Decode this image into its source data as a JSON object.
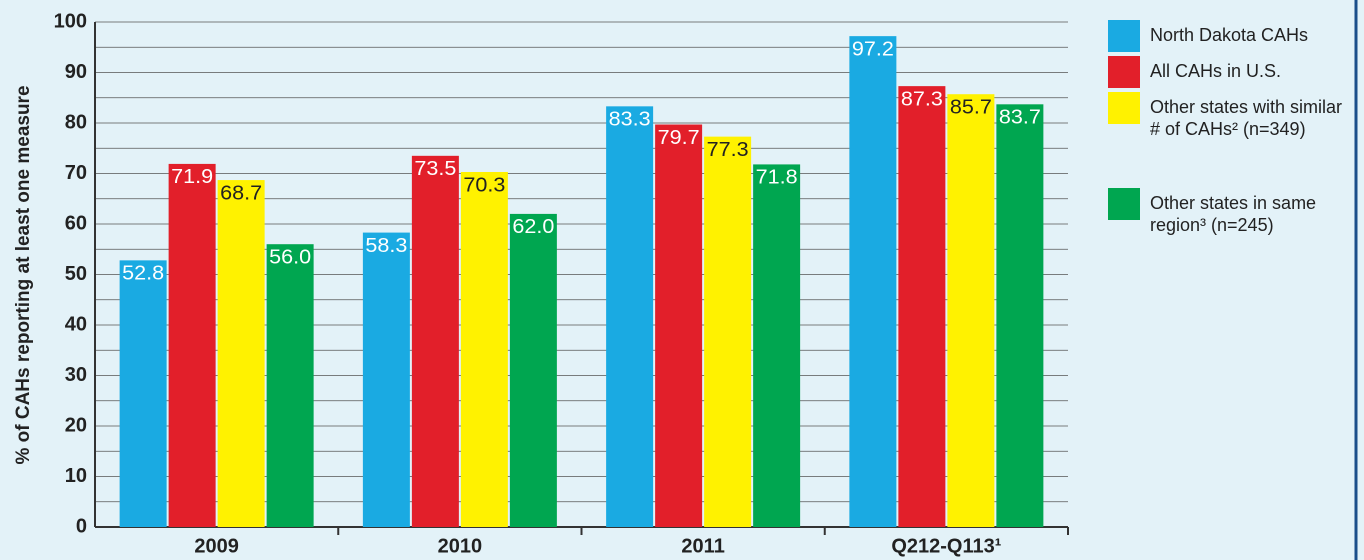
{
  "chart_data": {
    "type": "bar",
    "ylabel": "% of CAHs reporting at least one measure",
    "categories": [
      "2009",
      "2010",
      "2011",
      "Q212-Q113¹"
    ],
    "series": [
      {
        "name": "North Dakota CAHs",
        "color": "#1aaae2",
        "values": [
          52.8,
          58.3,
          83.3,
          97.2
        ],
        "value_labels": [
          "52.8",
          "58.3",
          "83.3",
          "97.2"
        ]
      },
      {
        "name": "All CAHs in U.S.",
        "color": "#e21f2a",
        "values": [
          71.9,
          73.5,
          79.7,
          87.3
        ],
        "value_labels": [
          "71.9",
          "73.5",
          "79.7",
          "87.3"
        ]
      },
      {
        "name": "Other states with similar # of CAHs² (n=349)",
        "color": "#fff200",
        "values": [
          68.7,
          70.3,
          77.3,
          85.7
        ],
        "value_labels": [
          "68.7",
          "70.3",
          "77.3",
          "85.7"
        ]
      },
      {
        "name": "Other states in same region³ (n=245)",
        "color": "#00a650",
        "values": [
          56.0,
          62.0,
          71.8,
          83.7
        ],
        "value_labels": [
          "56.0",
          "62.0",
          "71.8",
          "83.7"
        ]
      }
    ],
    "ylim": [
      0,
      100
    ],
    "yticks": [
      0,
      10,
      20,
      30,
      40,
      50,
      60,
      70,
      80,
      90,
      100
    ],
    "minor_yticks": [
      5,
      15,
      25,
      35,
      45,
      55,
      65,
      75,
      85,
      95
    ],
    "grid": true,
    "legend": "right"
  }
}
